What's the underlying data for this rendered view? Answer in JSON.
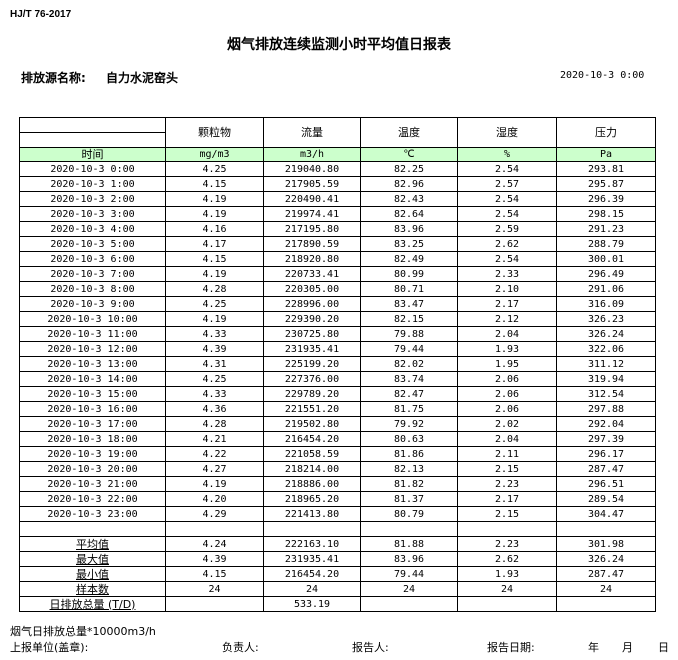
{
  "standard": "HJ/T  76-2017",
  "title": "烟气排放连续监测小时平均值日报表",
  "source_label": "排放源名称:",
  "source_name": "自力水泥窑头",
  "report_datetime": "2020-10-3  0:00",
  "columns": [
    "颗粒物",
    "流量",
    "温度",
    "湿度",
    "压力"
  ],
  "time_header": "时间",
  "units": [
    "mg/m3",
    "m3/h",
    "℃",
    "%",
    "Pa"
  ],
  "rows": [
    [
      "2020-10-3 0:00",
      "4.25",
      "219040.80",
      "82.25",
      "2.54",
      "293.81"
    ],
    [
      "2020-10-3 1:00",
      "4.15",
      "217905.59",
      "82.96",
      "2.57",
      "295.87"
    ],
    [
      "2020-10-3 2:00",
      "4.19",
      "220490.41",
      "82.43",
      "2.54",
      "296.39"
    ],
    [
      "2020-10-3 3:00",
      "4.19",
      "219974.41",
      "82.64",
      "2.54",
      "298.15"
    ],
    [
      "2020-10-3 4:00",
      "4.16",
      "217195.80",
      "83.96",
      "2.59",
      "291.23"
    ],
    [
      "2020-10-3 5:00",
      "4.17",
      "217890.59",
      "83.25",
      "2.62",
      "288.79"
    ],
    [
      "2020-10-3 6:00",
      "4.15",
      "218920.80",
      "82.49",
      "2.54",
      "300.01"
    ],
    [
      "2020-10-3 7:00",
      "4.19",
      "220733.41",
      "80.99",
      "2.33",
      "296.49"
    ],
    [
      "2020-10-3 8:00",
      "4.28",
      "220305.00",
      "80.71",
      "2.10",
      "291.06"
    ],
    [
      "2020-10-3 9:00",
      "4.25",
      "228996.00",
      "83.47",
      "2.17",
      "316.09"
    ],
    [
      "2020-10-3 10:00",
      "4.19",
      "229390.20",
      "82.15",
      "2.12",
      "326.23"
    ],
    [
      "2020-10-3 11:00",
      "4.33",
      "230725.80",
      "79.88",
      "2.04",
      "326.24"
    ],
    [
      "2020-10-3 12:00",
      "4.39",
      "231935.41",
      "79.44",
      "1.93",
      "322.06"
    ],
    [
      "2020-10-3 13:00",
      "4.31",
      "225199.20",
      "82.02",
      "1.95",
      "311.12"
    ],
    [
      "2020-10-3 14:00",
      "4.25",
      "227376.00",
      "83.74",
      "2.06",
      "319.94"
    ],
    [
      "2020-10-3 15:00",
      "4.33",
      "229789.20",
      "82.47",
      "2.06",
      "312.54"
    ],
    [
      "2020-10-3 16:00",
      "4.36",
      "221551.20",
      "81.75",
      "2.06",
      "297.88"
    ],
    [
      "2020-10-3 17:00",
      "4.28",
      "219502.80",
      "79.92",
      "2.02",
      "292.04"
    ],
    [
      "2020-10-3 18:00",
      "4.21",
      "216454.20",
      "80.63",
      "2.04",
      "297.39"
    ],
    [
      "2020-10-3 19:00",
      "4.22",
      "221058.59",
      "81.86",
      "2.11",
      "296.17"
    ],
    [
      "2020-10-3 20:00",
      "4.27",
      "218214.00",
      "82.13",
      "2.15",
      "287.47"
    ],
    [
      "2020-10-3 21:00",
      "4.19",
      "218886.00",
      "81.82",
      "2.23",
      "296.51"
    ],
    [
      "2020-10-3 22:00",
      "4.20",
      "218965.20",
      "81.37",
      "2.17",
      "289.54"
    ],
    [
      "2020-10-3 23:00",
      "4.29",
      "221413.80",
      "80.79",
      "2.15",
      "304.47"
    ]
  ],
  "summary": [
    [
      "平均值",
      "4.24",
      "222163.10",
      "81.88",
      "2.23",
      "301.98"
    ],
    [
      "最大值",
      "4.39",
      "231935.41",
      "83.96",
      "2.62",
      "326.24"
    ],
    [
      "最小值",
      "4.15",
      "216454.20",
      "79.44",
      "1.93",
      "287.47"
    ],
    [
      "样本数",
      "24",
      "24",
      "24",
      "24",
      "24"
    ],
    [
      "日排放总量 (T/D)",
      "",
      "533.19",
      "",
      "",
      ""
    ]
  ],
  "footer": {
    "note": "烟气日排放总量*10000m3/h",
    "unit_label": "上报单位(盖章):",
    "responsible_label": "负责人:",
    "reporter_label": "报告人:",
    "date_label": "报告日期:",
    "year": "年",
    "month": "月",
    "day": "日"
  }
}
